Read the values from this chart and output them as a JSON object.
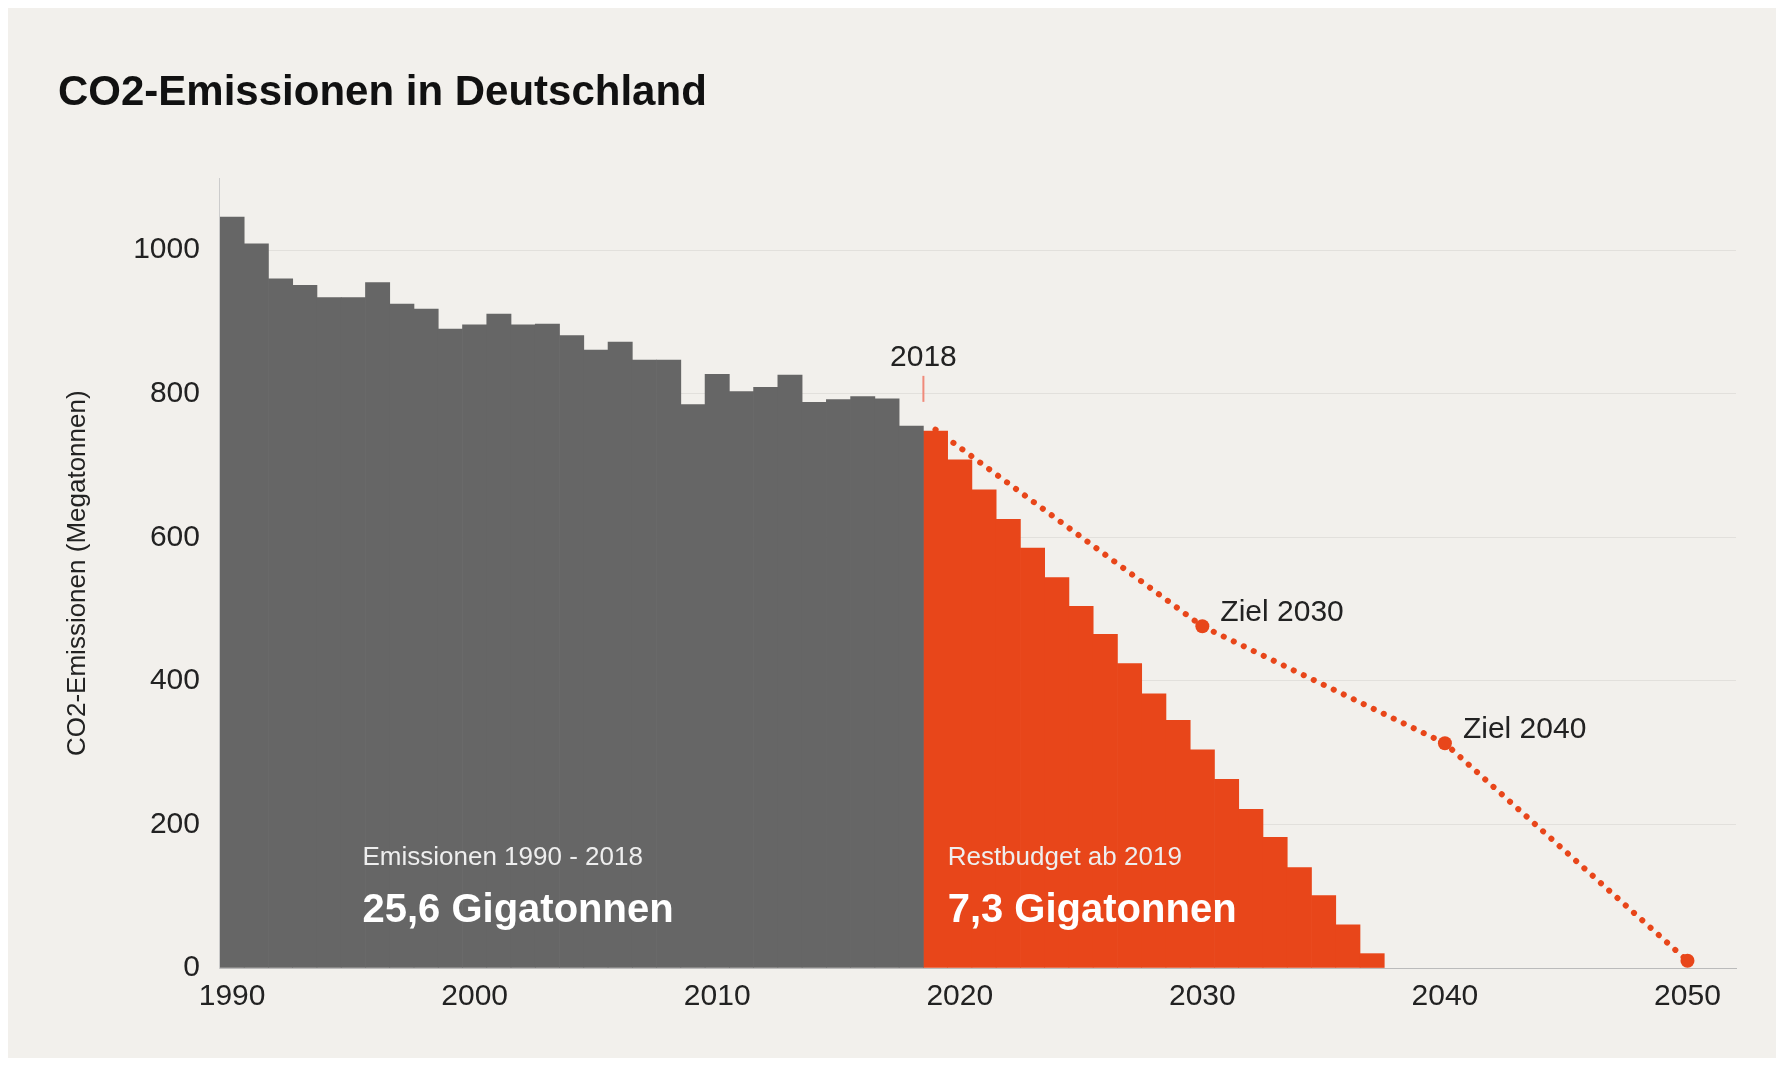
{
  "chart_data": {
    "type": "bar",
    "title": "CO2-Emissionen in Deutschland",
    "ylabel": "CO2-Emissionen (Megatonnen)",
    "xlim": [
      1989.5,
      2052
    ],
    "xticks": [
      1990,
      2000,
      2010,
      2020,
      2030,
      2040,
      2050
    ],
    "ylim": [
      0,
      1100
    ],
    "yticks": [
      0,
      200,
      400,
      600,
      800,
      1000
    ],
    "grid": "y",
    "legend": false,
    "series": [
      {
        "color": "#666666",
        "x": [
          1990,
          1991,
          1992,
          1993,
          1994,
          1995,
          1996,
          1997,
          1998,
          1999,
          2000,
          2001,
          2002,
          2003,
          2004,
          2005,
          2006,
          2007,
          2008,
          2009,
          2010,
          2011,
          2012,
          2013,
          2014,
          2015,
          2016,
          2017,
          2018
        ],
        "values": [
          1046,
          1009,
          960,
          951,
          934,
          934,
          955,
          925,
          918,
          890,
          896,
          911,
          896,
          897,
          881,
          861,
          872,
          847,
          847,
          785,
          827,
          803,
          809,
          826,
          788,
          792,
          796,
          793,
          755
        ]
      },
      {
        "color": "#e8461a",
        "x": [
          2019,
          2020,
          2021,
          2022,
          2023,
          2024,
          2025,
          2026,
          2027,
          2028,
          2029,
          2030,
          2031,
          2032,
          2033,
          2034,
          2035,
          2036,
          2037
        ],
        "values": [
          748,
          708,
          666,
          625,
          585,
          544,
          504,
          465,
          424,
          382,
          345,
          304,
          263,
          221,
          182,
          140,
          101,
          60,
          20
        ]
      },
      {
        "type": "line",
        "color": "#e8461a",
        "line_style": "dotted",
        "marker": "circle",
        "x": [
          2019,
          2030,
          2040,
          2050
        ],
        "values": [
          750,
          476,
          313,
          10
        ]
      }
    ],
    "annotations": [
      "2018",
      "Emissionen 1990 - 2018",
      "25,6 Gigatonnen",
      "Restbudget ab 2019",
      "7,3 Gigatonnen",
      {
        "text": "Ziel 2030",
        "x": 2030,
        "y": 476
      },
      {
        "text": "Ziel 2040",
        "x": 2040,
        "y": 313
      }
    ]
  }
}
